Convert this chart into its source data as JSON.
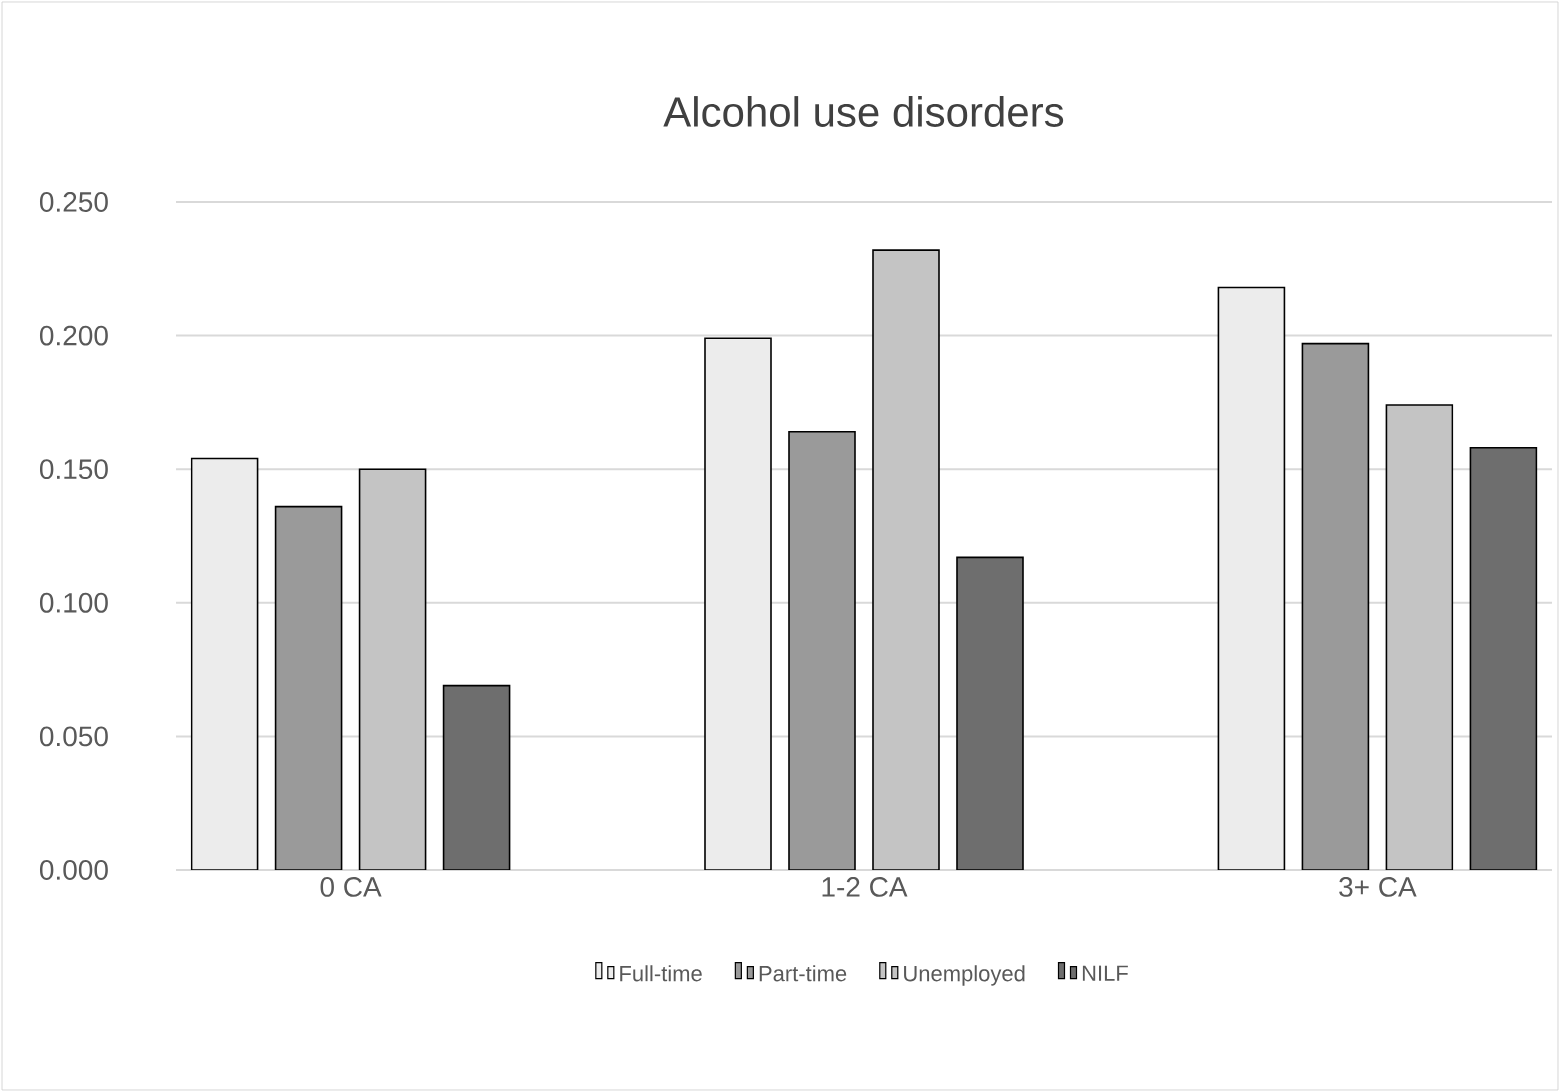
{
  "chart_data": {
    "type": "bar",
    "title": "Alcohol use disorders",
    "categories": [
      "0 CA",
      "1-2 CA",
      "3+ CA"
    ],
    "series": [
      {
        "name": "Full-time",
        "color": "#ececec",
        "values": [
          0.154,
          0.199,
          0.218
        ]
      },
      {
        "name": "Part-time",
        "color": "#9a9a9a",
        "values": [
          0.136,
          0.164,
          0.197
        ]
      },
      {
        "name": "Unemployed",
        "color": "#c4c4c4",
        "values": [
          0.15,
          0.232,
          0.174
        ]
      },
      {
        "name": "NILF",
        "color": "#6e6e6e",
        "values": [
          0.069,
          0.117,
          0.158
        ]
      }
    ],
    "ylim": [
      0,
      0.25
    ],
    "yticks": [
      {
        "value": 0,
        "label": "0.000"
      },
      {
        "value": 0.05,
        "label": "0.050"
      },
      {
        "value": 0.1,
        "label": "0.100"
      },
      {
        "value": 0.15,
        "label": "0.150"
      },
      {
        "value": 0.2,
        "label": "0.200"
      },
      {
        "value": 0.25,
        "label": "0.250"
      }
    ],
    "grid": "y",
    "legend": "bottom"
  }
}
